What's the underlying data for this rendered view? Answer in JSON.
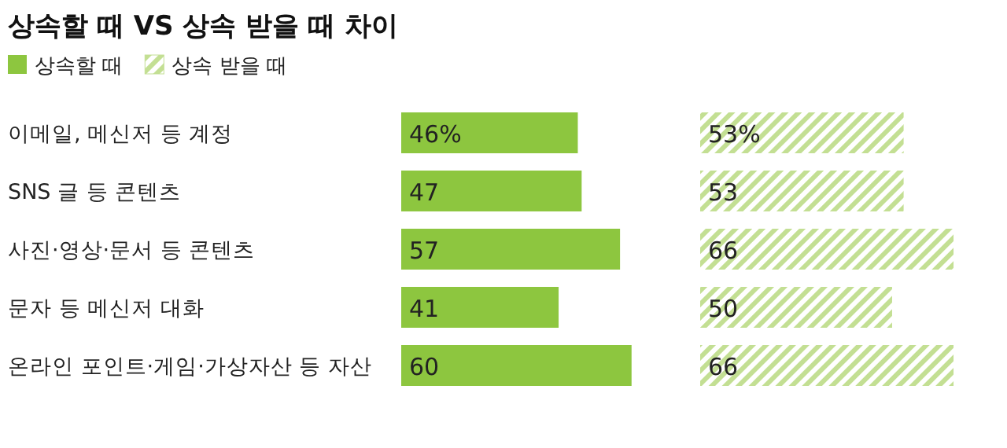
{
  "chart_data": [
    {
      "type": "bar",
      "orientation": "horizontal",
      "title": "상속할 때 VS 상속 받을 때 차이",
      "categories": [
        "이메일, 메신저 등 계정",
        "SNS 글 등 콘텐츠",
        "사진·영상·문서 등 콘텐츠",
        "문자 등 메신저 대화",
        "온라인 포인트·게임·가상자산 등 자산"
      ],
      "series": [
        {
          "name": "상속할 때",
          "color": "#8dc63f",
          "values": [
            46,
            47,
            57,
            41,
            60
          ],
          "value_labels": [
            "46%",
            "47",
            "57",
            "41",
            "60"
          ]
        }
      ],
      "legend": "top left"
    },
    {
      "type": "bar",
      "orientation": "horizontal",
      "categories": [
        null,
        null,
        null,
        null,
        null
      ],
      "series": [
        {
          "name": "상속 받을 때",
          "color": "#c3df93",
          "values": [
            53,
            53,
            66,
            50,
            66
          ],
          "value_labels": [
            "53%",
            "53",
            "66",
            "50",
            "66"
          ]
        }
      ],
      "legend": "top left"
    }
  ]
}
